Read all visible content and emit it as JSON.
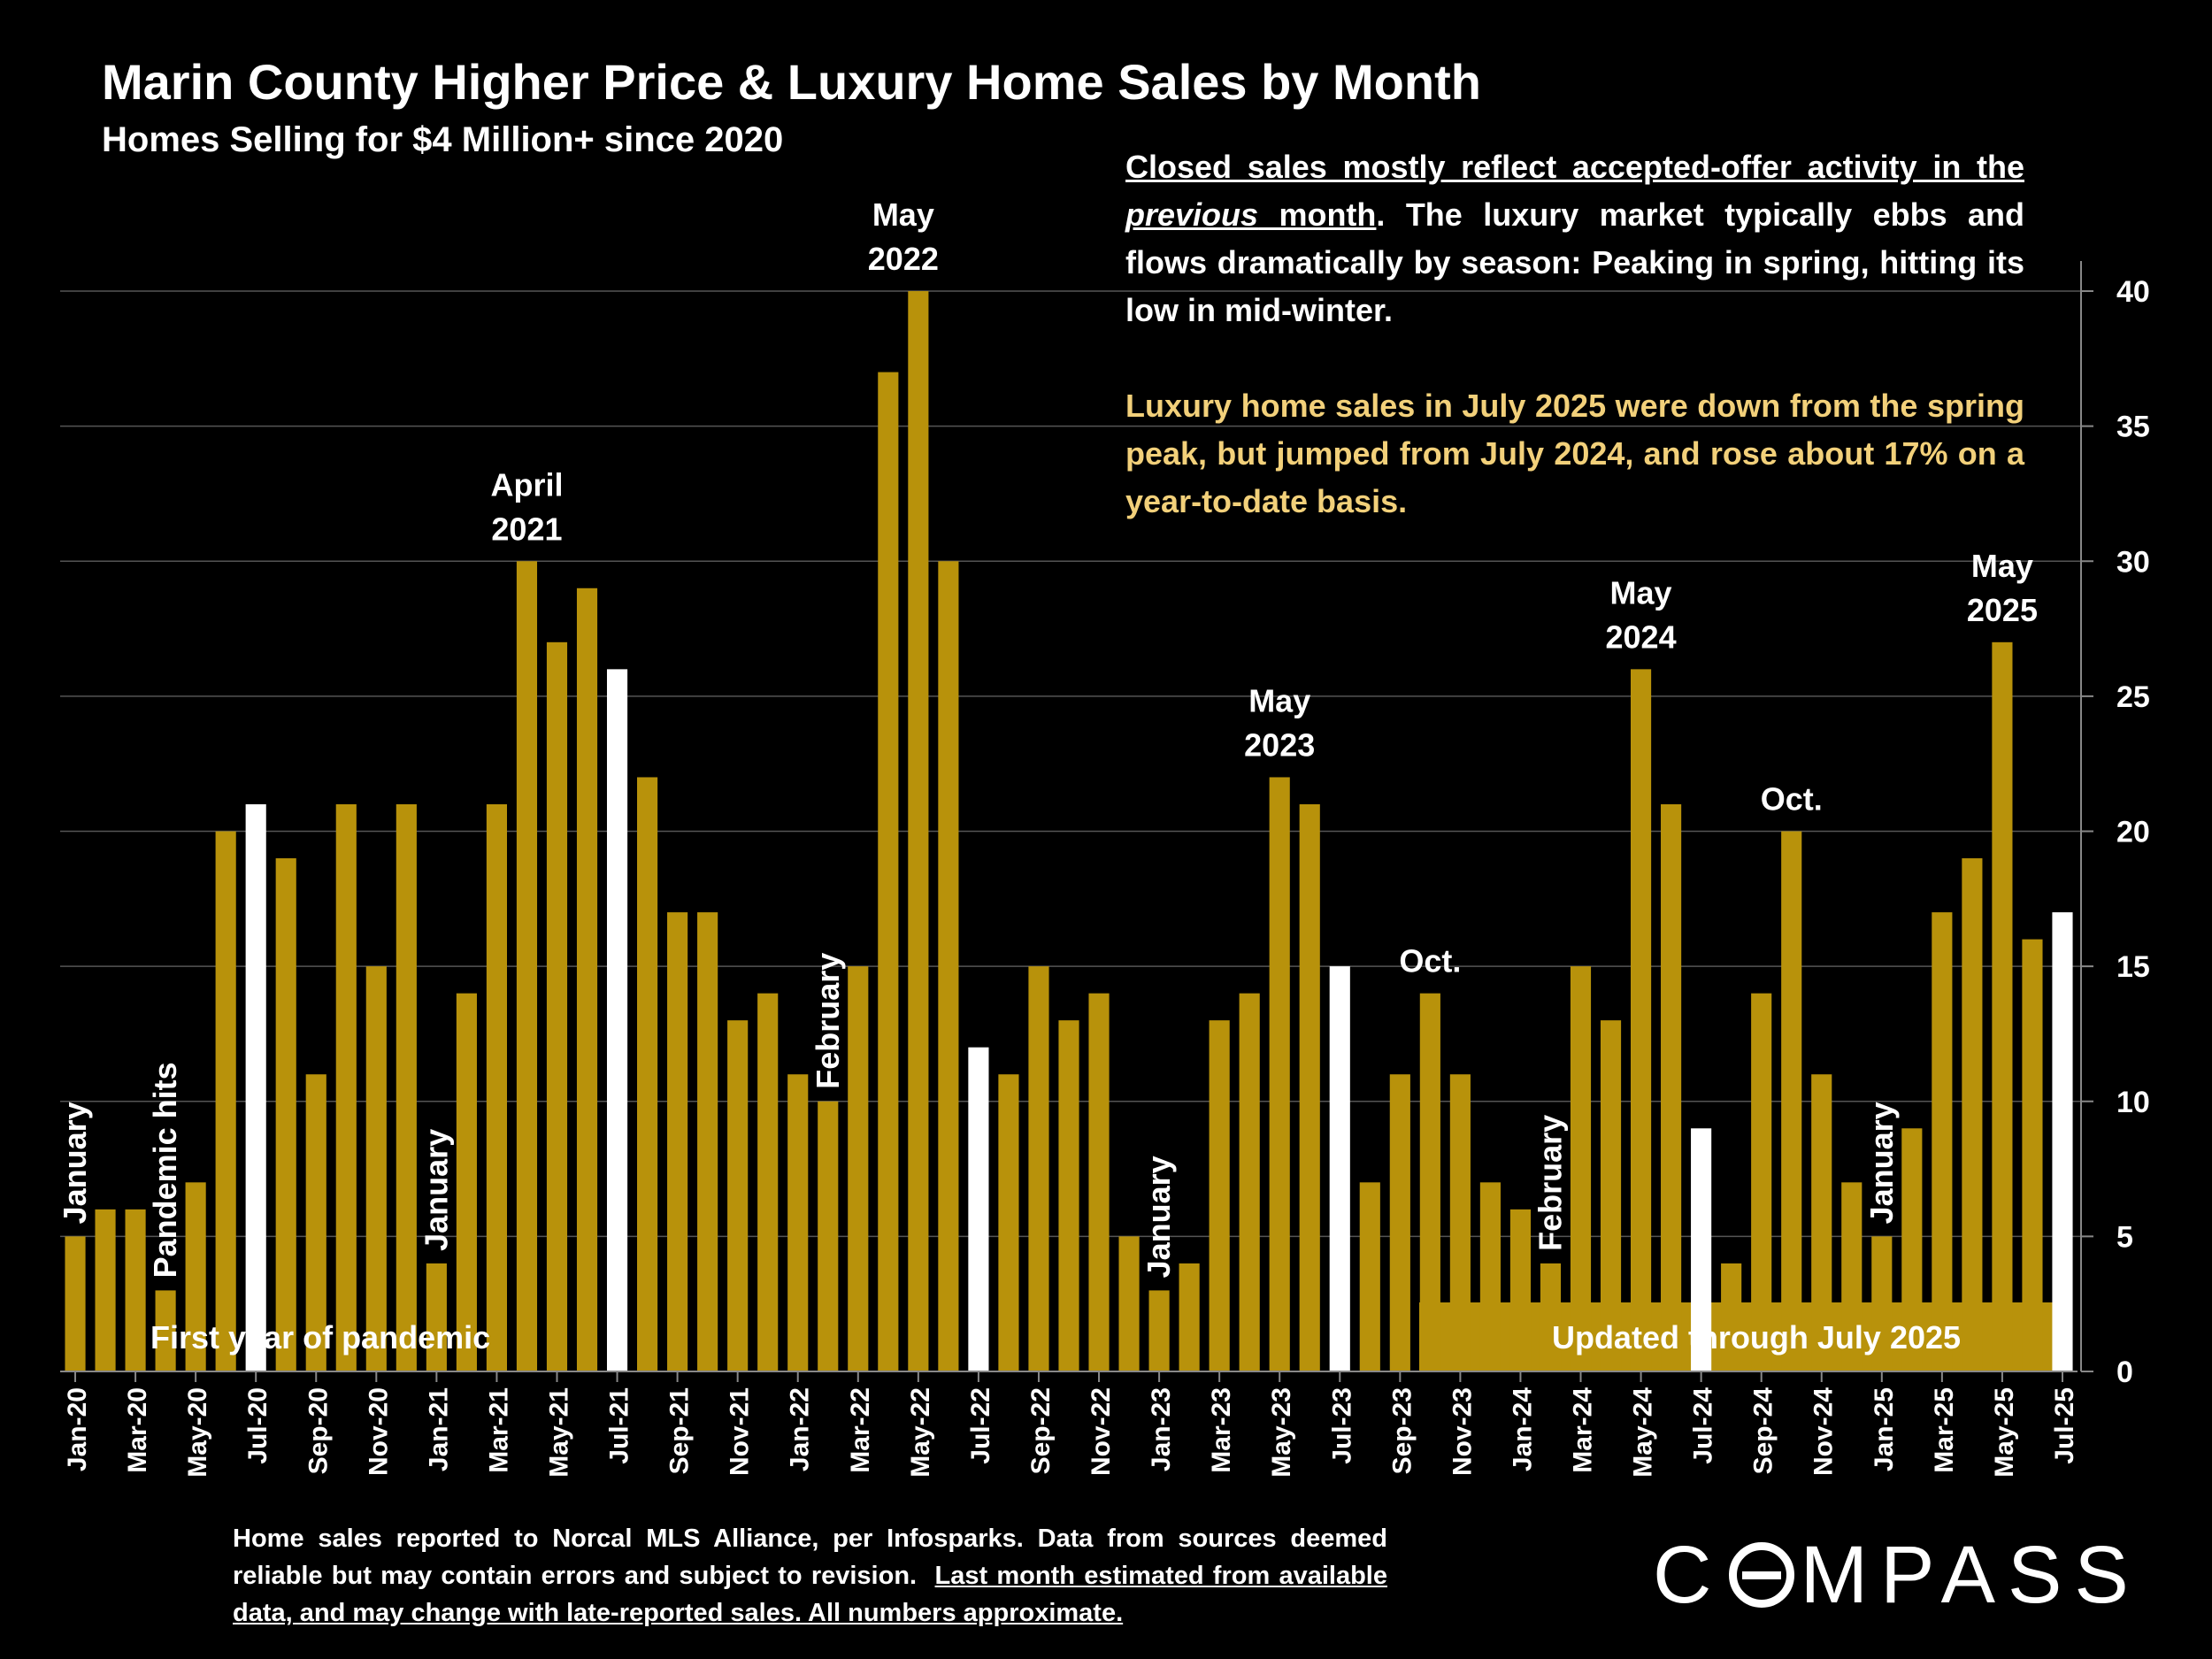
{
  "chart_data": {
    "type": "bar",
    "title": "Marin County Higher Price & Luxury Home Sales by Month",
    "subtitle": "Homes Selling for $4 Million+ since 2020",
    "categories": [
      "Jan-20",
      "Feb-20",
      "Mar-20",
      "Apr-20",
      "May-20",
      "Jun-20",
      "Jul-20",
      "Aug-20",
      "Sep-20",
      "Oct-20",
      "Nov-20",
      "Dec-20",
      "Jan-21",
      "Feb-21",
      "Mar-21",
      "Apr-21",
      "May-21",
      "Jun-21",
      "Jul-21",
      "Aug-21",
      "Sep-21",
      "Oct-21",
      "Nov-21",
      "Dec-21",
      "Jan-22",
      "Feb-22",
      "Mar-22",
      "Apr-22",
      "May-22",
      "Jun-22",
      "Jul-22",
      "Aug-22",
      "Sep-22",
      "Oct-22",
      "Nov-22",
      "Dec-22",
      "Jan-23",
      "Feb-23",
      "Mar-23",
      "Apr-23",
      "May-23",
      "Jun-23",
      "Jul-23",
      "Aug-23",
      "Sep-23",
      "Oct-23",
      "Nov-23",
      "Dec-23",
      "Jan-24",
      "Feb-24",
      "Mar-24",
      "Apr-24",
      "May-24",
      "Jun-24",
      "Jul-24",
      "Aug-24",
      "Sep-24",
      "Oct-24",
      "Nov-24",
      "Dec-24",
      "Jan-25",
      "Feb-25",
      "Mar-25",
      "Apr-25",
      "May-25",
      "Jun-25",
      "Jul-25"
    ],
    "values": [
      5,
      6,
      6,
      3,
      7,
      20,
      21,
      19,
      11,
      21,
      15,
      21,
      4,
      14,
      21,
      30,
      27,
      29,
      26,
      22,
      17,
      17,
      13,
      14,
      11,
      10,
      15,
      37,
      40,
      30,
      12,
      11,
      15,
      13,
      14,
      5,
      3,
      4,
      13,
      14,
      22,
      21,
      15,
      7,
      11,
      14,
      11,
      7,
      6,
      4,
      15,
      13,
      26,
      21,
      9,
      4,
      14,
      20,
      11,
      7,
      5,
      9,
      17,
      19,
      27,
      16,
      17
    ],
    "highlighted_indices": [
      6,
      18,
      30,
      42,
      54,
      66
    ],
    "x_tick_labels": [
      "Jan-20",
      "Mar-20",
      "May-20",
      "Jul-20",
      "Sep-20",
      "Nov-20",
      "Jan-21",
      "Mar-21",
      "May-21",
      "Jul-21",
      "Sep-21",
      "Nov-21",
      "Jan-22",
      "Mar-22",
      "May-22",
      "Jul-22",
      "Sep-22",
      "Nov-22",
      "Jan-23",
      "Mar-23",
      "May-23",
      "Jul-23",
      "Sep-23",
      "Nov-23",
      "Jan-24",
      "Mar-24",
      "May-24",
      "Jul-24",
      "Sep-24",
      "Nov-24",
      "Jan-25",
      "Mar-25",
      "May-25",
      "Jul-25"
    ],
    "y_ticks": [
      0,
      5,
      10,
      15,
      20,
      25,
      30,
      35,
      40
    ],
    "ylim": [
      0,
      40
    ],
    "y_axis_side": "right",
    "grid": true,
    "colors": {
      "bar": "#b8920b",
      "highlight_bar": "#ffffff",
      "grid": "#555555",
      "background": "#000000",
      "band": "#b8920b"
    },
    "annotations": [
      {
        "index": 27.5,
        "lines": [
          "May",
          "2022"
        ]
      },
      {
        "index": 15,
        "lines": [
          "April",
          "2021"
        ]
      },
      {
        "index": 40,
        "lines": [
          "May",
          "2023"
        ]
      },
      {
        "index": 52,
        "lines": [
          "May",
          "2024"
        ]
      },
      {
        "index": 64,
        "lines": [
          "May",
          "2025"
        ]
      },
      {
        "index": 45,
        "lines": [
          "Oct."
        ]
      },
      {
        "index": 57,
        "lines": [
          "Oct."
        ]
      }
    ],
    "vertical_annotations": [
      {
        "index": 0,
        "text": "January"
      },
      {
        "index": 3,
        "text": "Pandemic hits"
      },
      {
        "index": 12,
        "text": "January"
      },
      {
        "index": 25,
        "text": "February"
      },
      {
        "index": 36,
        "text": "January"
      },
      {
        "index": 49,
        "text": "February"
      },
      {
        "index": 60,
        "text": "January"
      }
    ],
    "bands": [
      {
        "text": "First year of pandemic",
        "filled": false
      },
      {
        "text": "Updated through July 2025",
        "filled": true
      }
    ]
  },
  "note": {
    "p1_underlined_a": "Closed sales mostly reflect accepted-offer activity in the ",
    "p1_italic": "previous",
    "p1_underlined_b": " month",
    "p1_rest": ". The luxury market typically ebbs and flows dramatically by season: Peaking in spring, hitting its low in mid-winter.",
    "p2": "Luxury home sales in July 2025 were down from the spring peak, but jumped from July 2024, and rose about 17% on a year-to-date basis."
  },
  "footer": {
    "text_plain": "Home sales reported to Norcal MLS Alliance, per Infosparks. Data from sources deemed reliable but may contain errors and subject to revision.",
    "text_underlined": "Last month estimated from available data, and may change with late-reported sales. All numbers approximate."
  },
  "logo": {
    "text": "COMPASS"
  }
}
